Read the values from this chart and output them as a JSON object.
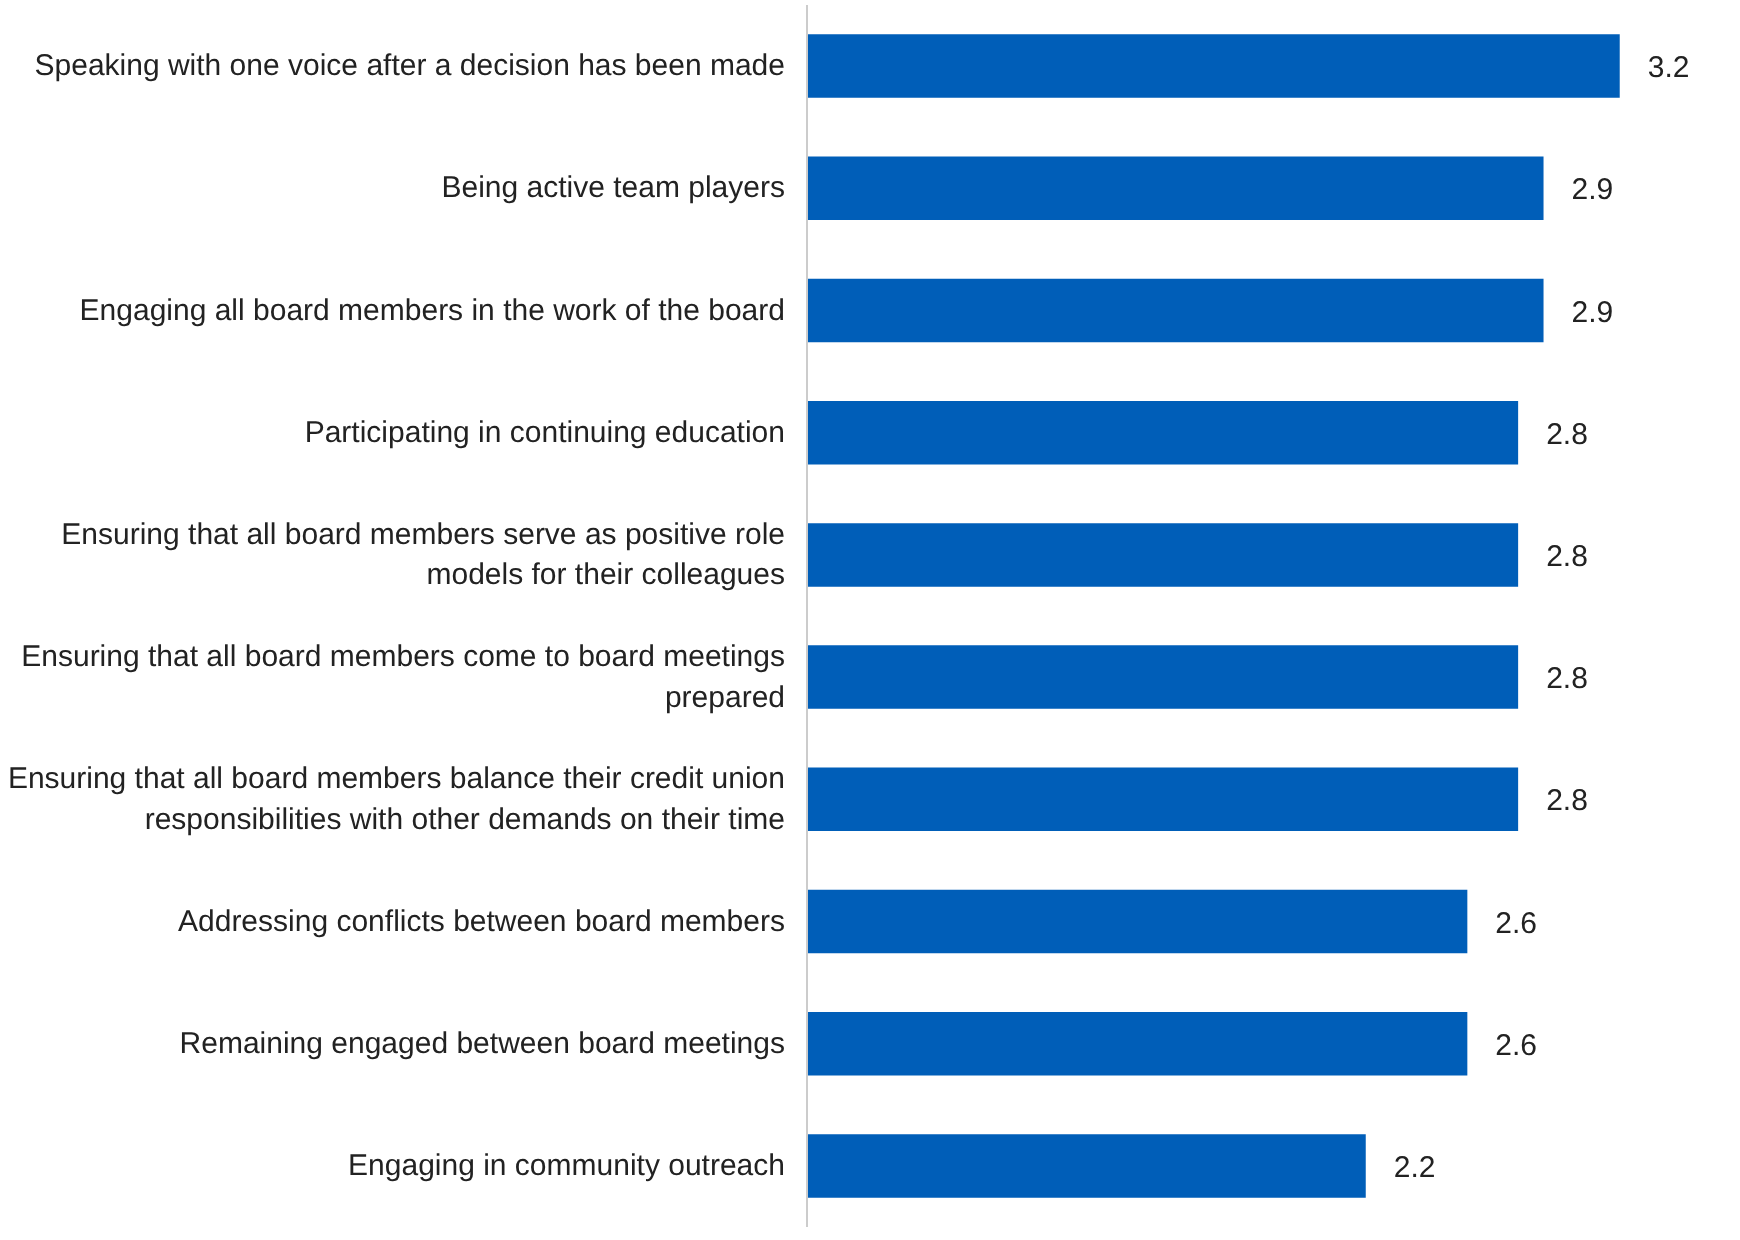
{
  "chart_data": {
    "type": "bar",
    "orientation": "horizontal",
    "data_labels": true,
    "categories": [
      "Speaking with one voice after a decision has been made",
      "Being active team players",
      "Engaging all board members in the work of the board",
      "Participating in continuing education",
      "Ensuring that all board members serve as positive role models for their colleagues",
      "Ensuring that all board members come to board meetings prepared",
      "Ensuring that all board members balance their credit union responsibilities with other demands on their time",
      "Addressing conflicts between board members",
      "Remaining engaged between board meetings",
      "Engaging in community outreach"
    ],
    "values": [
      3.2,
      2.9,
      2.9,
      2.8,
      2.8,
      2.8,
      2.8,
      2.6,
      2.6,
      2.2
    ],
    "color": "#005eb8"
  }
}
